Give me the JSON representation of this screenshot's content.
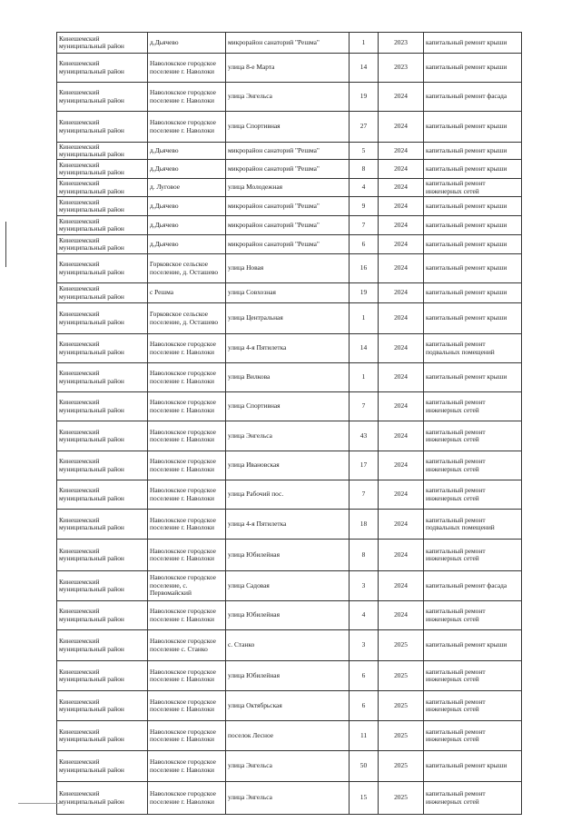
{
  "rows": [
    [
      "Кинешемский муниципальный район",
      "д.Дьячево",
      "микрорайон санаторий \"Решма\"",
      "1",
      "2023",
      "капитальный ремонт крыши"
    ],
    [
      "Кинешемский муниципальный район",
      "Наволокское городское поселение г. Наволоки",
      "улица 8-е Марта",
      "14",
      "2023",
      "капитальный ремонт крыши"
    ],
    [
      "Кинешемский муниципальный район",
      "Наволокское городское поселение г. Наволоки",
      "улица Энгельса",
      "19",
      "2024",
      "капитальный ремонт фасада"
    ],
    [
      "Кинешемский муниципальный район",
      "Наволокское городское поселение г. Наволоки",
      "улица Спортивная",
      "27",
      "2024",
      "капитальный ремонт крыши"
    ],
    [
      "Кинешемский муниципальный район",
      "д.Дьячево",
      "микрорайон санаторий \"Решма\"",
      "5",
      "2024",
      "капитальный ремонт крыши"
    ],
    [
      "Кинешемский муниципальный район",
      "д.Дьячево",
      "микрорайон санаторий \"Решма\"",
      "8",
      "2024",
      "капитальный ремонт крыши"
    ],
    [
      "Кинешемский муниципальный район",
      "д. Луговое",
      "улица Молодежная",
      "4",
      "2024",
      "капитальный ремонт инженерных сетей"
    ],
    [
      "Кинешемский муниципальный район",
      "д.Дьячево",
      "микрорайон санаторий \"Решма\"",
      "9",
      "2024",
      "капитальный ремонт крыши"
    ],
    [
      "Кинешемский муниципальный район",
      "д.Дьячево",
      "микрорайон санаторий \"Решма\"",
      "7",
      "2024",
      "капитальный ремонт крыши"
    ],
    [
      "Кинешемский муниципальный район",
      "д.Дьячево",
      "микрорайон санаторий \"Решма\"",
      "6",
      "2024",
      "капитальный ремонт крыши"
    ],
    [
      "Кинешемский муниципальный район",
      "Горковское сельское поселение, д. Осташево",
      "улица Новая",
      "16",
      "2024",
      "капитальный ремонт крыши"
    ],
    [
      "Кинешемский муниципальный район",
      "с Решма",
      "улица Совхозная",
      "19",
      "2024",
      "капитальный ремонт крыши"
    ],
    [
      "Кинешемский муниципальный район",
      "Горковское сельское поселение, д. Осташево",
      "улица Центральная",
      "1",
      "2024",
      "капитальный ремонт крыши"
    ],
    [
      "Кинешемский муниципальный район",
      "Наволокское городское поселение г. Наволоки",
      "улица 4-я Пятилетка",
      "14",
      "2024",
      "капитальный ремонт подвальных помещений"
    ],
    [
      "Кинешемский муниципальный район",
      "Наволокское городское поселение г. Наволоки",
      "улица Вилкова",
      "1",
      "2024",
      "капитальный ремонт крыши"
    ],
    [
      "Кинешемский муниципальный район",
      "Наволокское городское поселение г. Наволоки",
      "улица Спортивная",
      "7",
      "2024",
      "капитальный ремонт инженерных сетей"
    ],
    [
      "Кинешемский муниципальный район",
      "Наволокское городское поселение г. Наволоки",
      "улица Энгельса",
      "43",
      "2024",
      "капитальный ремонт инженерных сетей"
    ],
    [
      "Кинешемский муниципальный район",
      "Наволокское городское поселение г. Наволоки",
      "улица Ивановская",
      "17",
      "2024",
      "капитальный ремонт инженерных сетей"
    ],
    [
      "Кинешемский муниципальный район",
      "Наволокское городское поселение г. Наволоки",
      "улица Рабочий пос.",
      "7",
      "2024",
      "капитальный ремонт инженерных сетей"
    ],
    [
      "Кинешемский муниципальный район",
      "Наволокское городское поселение г. Наволоки",
      "улица 4-я Пятилетка",
      "18",
      "2024",
      "капитальный ремонт подвальных помещений"
    ],
    [
      "Кинешемский муниципальный район",
      "Наволокское городское поселение г. Наволоки",
      "улица Юбилейная",
      "8",
      "2024",
      "капитальный ремонт инженерных сетей"
    ],
    [
      "Кинешемский муниципальный район",
      "Наволокское городское поселение, с. Первомайский",
      "улица Садовая",
      "3",
      "2024",
      "капитальный ремонт фасада"
    ],
    [
      "Кинешемский муниципальный район",
      "Наволокское городское поселение г. Наволоки",
      "улица Юбилейная",
      "4",
      "2024",
      "капитальный ремонт инженерных сетей"
    ],
    [
      "Кинешемский муниципальный район",
      "Наволокское городское поселение с. Станко",
      "с. Станко",
      "3",
      "2025",
      "капитальный ремонт крыши"
    ],
    [
      "Кинешемский муниципальный район",
      "Наволокское городское поселение г. Наволоки",
      "улица Юбилейная",
      "6",
      "2025",
      "капитальный ремонт инженерных сетей"
    ],
    [
      "Кинешемский муниципальный район",
      "Наволокское городское поселение г. Наволоки",
      "улица Октябрьская",
      "6",
      "2025",
      "капитальный ремонт инженерных сетей"
    ],
    [
      "Кинешемский муниципальный район",
      "Наволокское городское поселение г. Наволоки",
      "поселок Лесное",
      "11",
      "2025",
      "капитальный ремонт инженерных сетей"
    ],
    [
      "Кинешемский муниципальный район",
      "Наволокское городское поселение г. Наволоки",
      "улица Энгельса",
      "50",
      "2025",
      "капитальный ремонт крыши"
    ],
    [
      "Кинешемский муниципальный район",
      "Наволокское городское поселение г. Наволоки",
      "улица Энгельса",
      "15",
      "2025",
      "капитальный ремонт инженерных сетей"
    ]
  ]
}
